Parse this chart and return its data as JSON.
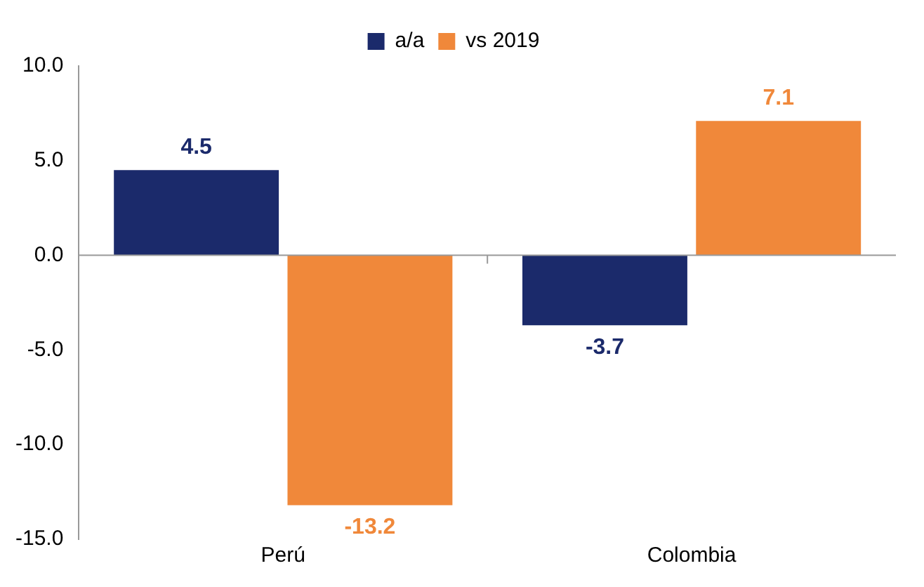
{
  "chart_data": {
    "type": "bar",
    "categories": [
      "Perú",
      "Colombia"
    ],
    "series": [
      {
        "name": "a/a",
        "color": "#1b2a6b",
        "values": [
          4.5,
          -3.7
        ]
      },
      {
        "name": "vs 2019",
        "color": "#f0883a",
        "values": [
          -13.2,
          7.1
        ]
      }
    ],
    "ylim": [
      -15,
      10
    ],
    "yticks": [
      {
        "value": -15,
        "label": "-15.0"
      },
      {
        "value": -10,
        "label": "-10.0"
      },
      {
        "value": -5,
        "label": "-5.0"
      },
      {
        "value": 0,
        "label": "0.0"
      },
      {
        "value": 5,
        "label": "5.0"
      },
      {
        "value": 10,
        "label": "10.0"
      }
    ],
    "grid": false,
    "ref_lines": [
      {
        "axis": "y",
        "value": 0,
        "color": "#999999"
      }
    ],
    "legend": "top",
    "data_labels": true
  }
}
